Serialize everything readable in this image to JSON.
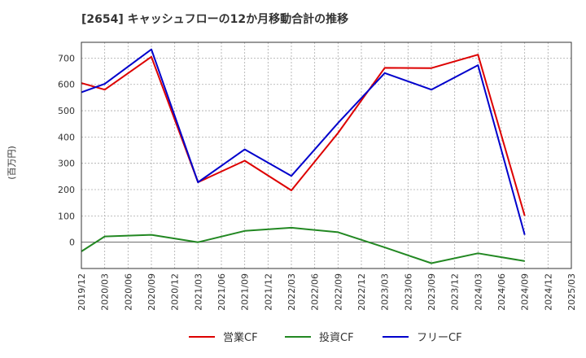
{
  "chart_data": {
    "type": "line",
    "title": "[2654]  キャッシュフローの12か月移動合計の推移",
    "ylabel": "(百万円)",
    "ylim": [
      -100,
      760
    ],
    "yticks": [
      0,
      100,
      200,
      300,
      400,
      500,
      600,
      700
    ],
    "xticks": [
      "2019/12",
      "2020/03",
      "2020/06",
      "2020/09",
      "2020/12",
      "2021/03",
      "2021/06",
      "2021/09",
      "2021/12",
      "2022/03",
      "2022/06",
      "2022/09",
      "2022/12",
      "2023/03",
      "2023/06",
      "2023/09",
      "2023/12",
      "2024/03",
      "2024/06",
      "2024/09",
      "2024/12",
      "2025/03"
    ],
    "grid": true,
    "legend_position": "bottom",
    "series": [
      {
        "name": "営業CF",
        "color": "#dd0000",
        "x": [
          "2019/12",
          "2020/03",
          "2020/09",
          "2021/03",
          "2021/09",
          "2022/03",
          "2022/09",
          "2023/03",
          "2023/09",
          "2024/03",
          "2024/09"
        ],
        "values": [
          605,
          580,
          705,
          228,
          310,
          197,
          415,
          663,
          662,
          713,
          100
        ]
      },
      {
        "name": "投資CF",
        "color": "#228822",
        "x": [
          "2019/12",
          "2020/03",
          "2020/09",
          "2021/03",
          "2021/09",
          "2022/03",
          "2022/09",
          "2023/03",
          "2023/09",
          "2024/03",
          "2024/09"
        ],
        "values": [
          -35,
          22,
          28,
          0,
          43,
          55,
          38,
          -20,
          -80,
          -42,
          -72
        ]
      },
      {
        "name": "フリーCF",
        "color": "#0000cc",
        "x": [
          "2019/12",
          "2020/03",
          "2020/09",
          "2021/03",
          "2021/09",
          "2022/03",
          "2022/09",
          "2023/03",
          "2023/09",
          "2024/03",
          "2024/09"
        ],
        "values": [
          570,
          602,
          733,
          228,
          353,
          252,
          453,
          643,
          580,
          673,
          28
        ]
      }
    ]
  }
}
